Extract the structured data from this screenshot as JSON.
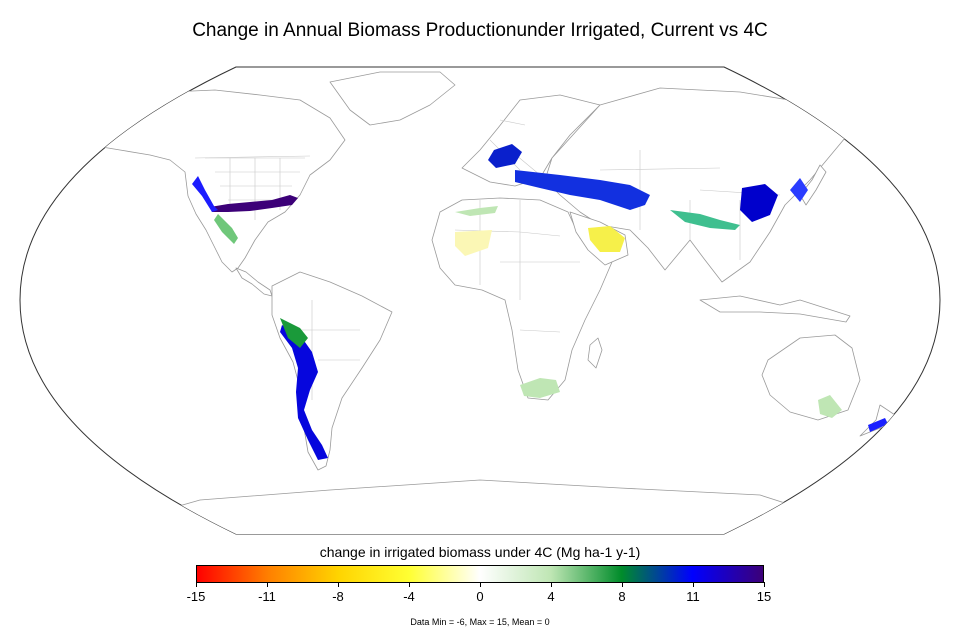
{
  "title": "Change in Annual Biomass Productionunder Irrigated, Current vs 4C",
  "legend": {
    "title": "change in irrigated biomass under 4C (Mg ha-1 y-1)",
    "range": [
      -15,
      15
    ],
    "ticks": [
      "-15",
      "-11",
      "-8",
      "-4",
      "0",
      "4",
      "8",
      "11",
      "15"
    ],
    "tick_values": [
      -15,
      -11.25,
      -7.5,
      -3.75,
      0,
      3.75,
      7.5,
      11.25,
      15
    ],
    "gradient_stops": [
      {
        "value": -15,
        "color": "#ff0000"
      },
      {
        "value": -11.25,
        "color": "#ff7f00"
      },
      {
        "value": -7.5,
        "color": "#ffd400"
      },
      {
        "value": -3.75,
        "color": "#ffff33"
      },
      {
        "value": 0,
        "color": "#ffffff"
      },
      {
        "value": 3.75,
        "color": "#bfe6b4"
      },
      {
        "value": 7.5,
        "color": "#008c2a"
      },
      {
        "value": 11.25,
        "color": "#0000ff"
      },
      {
        "value": 15,
        "color": "#3c0078"
      }
    ]
  },
  "stats": "Data Min = -6, Max = 15, Mean = 0",
  "colors": {
    "frame": "#333333",
    "coastline": "#9a9a9a",
    "border": "#c8c8c8"
  }
}
